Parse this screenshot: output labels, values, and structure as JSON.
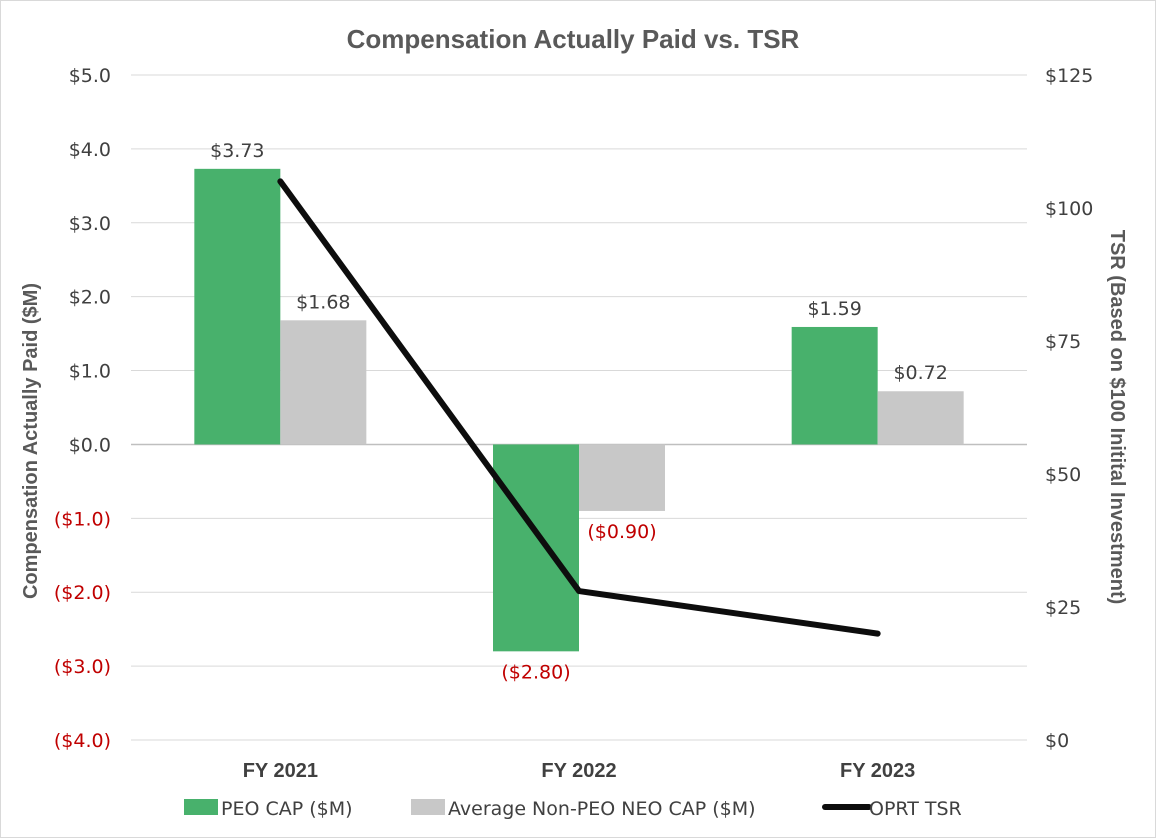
{
  "chart_data": {
    "type": "bar",
    "title": "Compensation Actually Paid vs. TSR",
    "categories": [
      "FY 2021",
      "FY 2022",
      "FY 2023"
    ],
    "y_left": {
      "label": "Compensation Actually Paid ($M)",
      "range": [
        -4,
        5
      ],
      "ticks": [
        "$5.0",
        "$4.0",
        "$3.0",
        "$2.0",
        "$1.0",
        "$0.0",
        "($1.0)",
        "($2.0)",
        "($3.0)",
        "($4.0)"
      ],
      "tick_values": [
        5,
        4,
        3,
        2,
        1,
        0,
        -1,
        -2,
        -3,
        -4
      ]
    },
    "y_right": {
      "label": "TSR (Based on $100 Initital Investment)",
      "range": [
        0,
        125
      ],
      "ticks": [
        "$125",
        "$100",
        "$75",
        "$50",
        "$25",
        "$0"
      ],
      "tick_values": [
        125,
        100,
        75,
        50,
        25,
        0
      ]
    },
    "series": [
      {
        "name": "PEO CAP ($M)",
        "type": "bar",
        "axis": "left",
        "color": "#48b16c",
        "values": [
          3.73,
          -2.8,
          1.59
        ],
        "labels": [
          "$3.73",
          "($2.80)",
          "$1.59"
        ]
      },
      {
        "name": "Average Non-PEO NEO CAP ($M)",
        "type": "bar",
        "axis": "left",
        "color": "#c8c8c8",
        "values": [
          1.68,
          -0.9,
          0.72
        ],
        "labels": [
          "$1.68",
          "($0.90)",
          "$0.72"
        ]
      },
      {
        "name": "OPRT TSR",
        "type": "line",
        "axis": "right",
        "color": "#0d0d0d",
        "values": [
          105,
          28,
          20
        ]
      }
    ],
    "grid": true,
    "legend_position": "bottom",
    "negative_color": "#c00000"
  }
}
